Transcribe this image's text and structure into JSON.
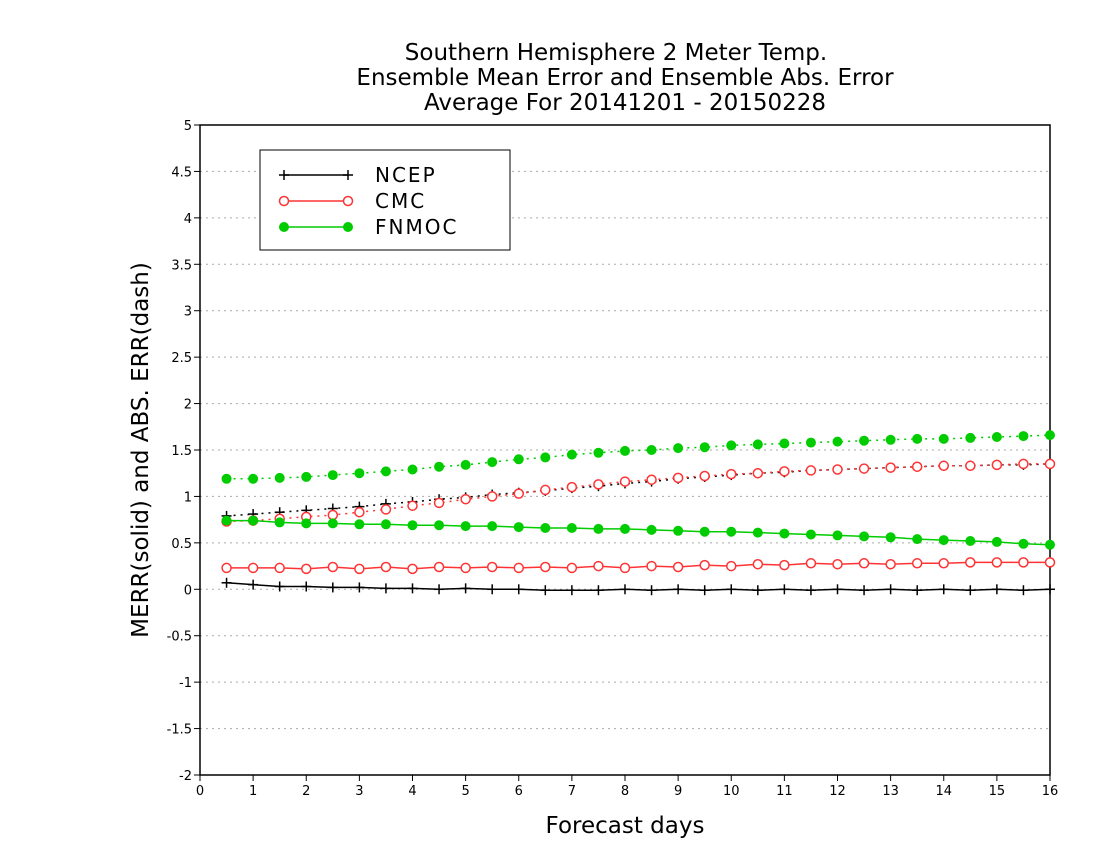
{
  "chart_data": {
    "type": "line",
    "title_lines": [
      "Southern Hemisphere 2 Meter Temp.",
      "Ensemble Mean Error and Ensemble Abs. Error",
      "Average For 20141201 - 20150228"
    ],
    "xlabel": "Forecast days",
    "ylabel": "MERR(solid) and ABS. ERR(dash)",
    "xlim": [
      0,
      16
    ],
    "ylim": [
      -2,
      5
    ],
    "x_ticks": [
      "0",
      "1",
      "2",
      "3",
      "4",
      "5",
      "6",
      "7",
      "8",
      "9",
      "10",
      "11",
      "12",
      "13",
      "14",
      "15",
      "16"
    ],
    "y_ticks": [
      "5",
      "4.5",
      "4",
      "3.5",
      "3",
      "2.5",
      "2",
      "1.5",
      "1",
      "0.5",
      "0",
      "-0.5",
      "-1",
      "-1.5",
      "-2"
    ],
    "y_tick_values": [
      5,
      4.5,
      4,
      3.5,
      3,
      2.5,
      2,
      1.5,
      1,
      0.5,
      0,
      -0.5,
      -1,
      -1.5,
      -2
    ],
    "grid": "horizontal dotted",
    "legend_position": "top-left",
    "x": [
      0.5,
      1,
      1.5,
      2,
      2.5,
      3,
      3.5,
      4,
      4.5,
      5,
      5.5,
      6,
      6.5,
      7,
      7.5,
      8,
      8.5,
      9,
      9.5,
      10,
      10.5,
      11,
      11.5,
      12,
      12.5,
      13,
      13.5,
      14,
      14.5,
      15,
      15.5,
      16
    ],
    "series": [
      {
        "name": "NCEP",
        "color": "#000000",
        "marker": "plus",
        "merr": [
          0.07,
          0.05,
          0.03,
          0.03,
          0.02,
          0.02,
          0.01,
          0.01,
          0.0,
          0.01,
          0.0,
          0.0,
          -0.01,
          -0.01,
          -0.01,
          0.0,
          -0.01,
          0.0,
          -0.01,
          0.0,
          -0.01,
          0.0,
          -0.01,
          0.0,
          -0.01,
          0.0,
          -0.01,
          0.0,
          -0.01,
          0.0,
          -0.01,
          0.0
        ],
        "abs_err": [
          0.79,
          0.81,
          0.83,
          0.85,
          0.87,
          0.89,
          0.92,
          0.94,
          0.97,
          0.99,
          1.02,
          1.04,
          1.06,
          1.09,
          1.11,
          1.14,
          1.16,
          1.19,
          1.21,
          1.23,
          1.25,
          1.26,
          1.28,
          1.29,
          1.3,
          1.31,
          1.32,
          1.33,
          1.33,
          1.34,
          1.34,
          1.35
        ]
      },
      {
        "name": "CMC",
        "color": "#ff3333",
        "marker": "open-circle",
        "merr": [
          0.23,
          0.23,
          0.23,
          0.22,
          0.24,
          0.22,
          0.24,
          0.22,
          0.24,
          0.23,
          0.24,
          0.23,
          0.24,
          0.23,
          0.25,
          0.23,
          0.25,
          0.24,
          0.26,
          0.25,
          0.27,
          0.26,
          0.28,
          0.27,
          0.28,
          0.27,
          0.28,
          0.28,
          0.29,
          0.29,
          0.29,
          0.29
        ],
        "abs_err": [
          0.73,
          0.74,
          0.76,
          0.78,
          0.8,
          0.83,
          0.86,
          0.9,
          0.93,
          0.97,
          1.0,
          1.03,
          1.07,
          1.1,
          1.13,
          1.16,
          1.18,
          1.2,
          1.22,
          1.24,
          1.25,
          1.27,
          1.28,
          1.29,
          1.3,
          1.31,
          1.32,
          1.33,
          1.33,
          1.34,
          1.35,
          1.35
        ]
      },
      {
        "name": "FNMOC",
        "color": "#00cc00",
        "marker": "filled-circle",
        "merr": [
          0.74,
          0.74,
          0.72,
          0.71,
          0.71,
          0.7,
          0.7,
          0.69,
          0.69,
          0.68,
          0.68,
          0.67,
          0.66,
          0.66,
          0.65,
          0.65,
          0.64,
          0.63,
          0.62,
          0.62,
          0.61,
          0.6,
          0.59,
          0.58,
          0.57,
          0.56,
          0.54,
          0.53,
          0.52,
          0.51,
          0.49,
          0.48
        ],
        "abs_err": [
          1.19,
          1.19,
          1.2,
          1.21,
          1.23,
          1.25,
          1.27,
          1.29,
          1.32,
          1.34,
          1.37,
          1.4,
          1.42,
          1.45,
          1.47,
          1.49,
          1.5,
          1.52,
          1.53,
          1.55,
          1.56,
          1.57,
          1.58,
          1.59,
          1.6,
          1.61,
          1.62,
          1.62,
          1.63,
          1.64,
          1.65,
          1.66
        ]
      }
    ]
  }
}
